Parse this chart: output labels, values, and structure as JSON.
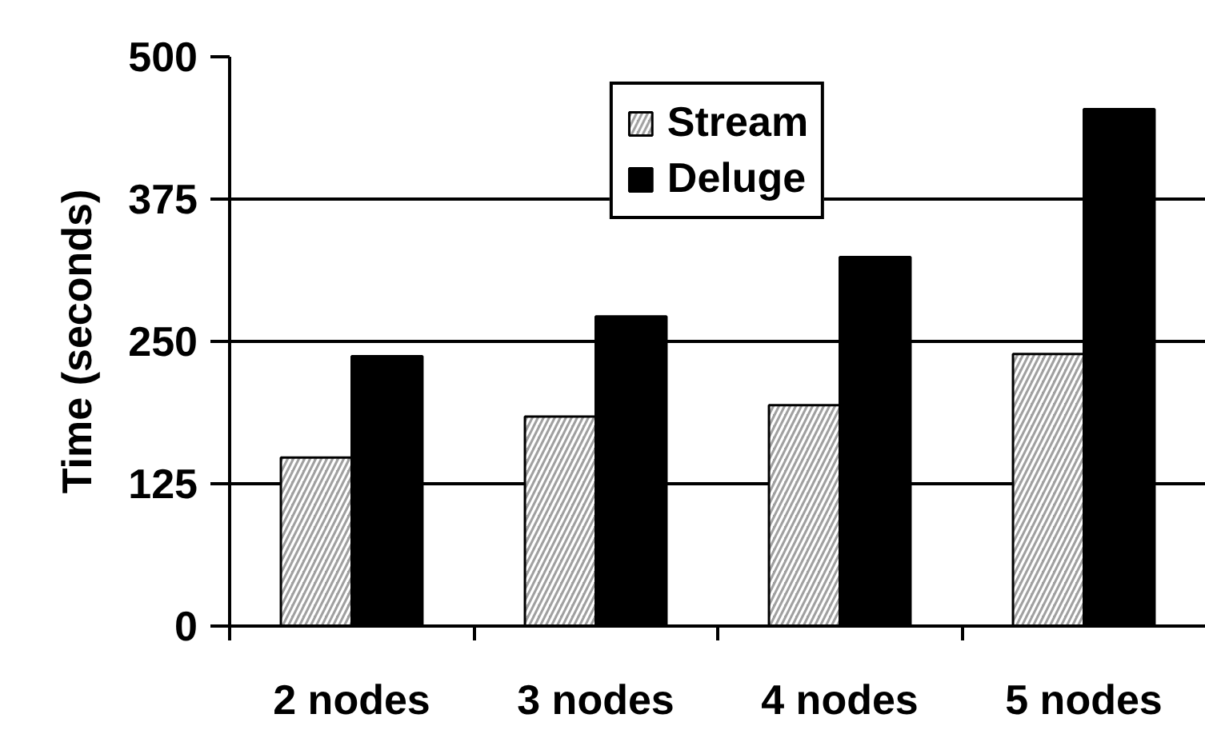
{
  "chart_data": {
    "type": "bar",
    "categories": [
      "2 nodes",
      "3 nodes",
      "4 nodes",
      "5 nodes"
    ],
    "ylabel": "Time (seconds)",
    "series": [
      {
        "name": "Stream",
        "color": "#a0a0a0",
        "values": [
          148,
          184,
          194,
          239
        ]
      },
      {
        "name": "Deluge",
        "color": "#000000",
        "values": [
          237,
          272,
          324,
          454
        ]
      }
    ],
    "ylim": [
      0,
      500
    ],
    "yticks": [
      0,
      125,
      250,
      375,
      500
    ],
    "grid": "y",
    "legend": "top"
  }
}
